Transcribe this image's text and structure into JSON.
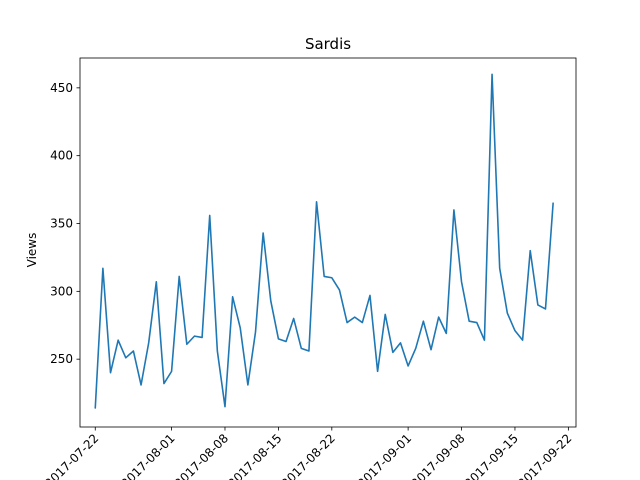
{
  "chart_data": {
    "type": "line",
    "title": "Sardis",
    "xlabel": "",
    "ylabel": "Views",
    "grid": false,
    "legend": "none",
    "xlim": [
      "2017-07-20",
      "2017-09-23"
    ],
    "ylim": [
      200,
      472
    ],
    "x_ticks": [
      "2017-07-22",
      "2017-08-01",
      "2017-08-08",
      "2017-08-15",
      "2017-08-22",
      "2017-09-01",
      "2017-09-08",
      "2017-09-15",
      "2017-09-22"
    ],
    "y_ticks": [
      250,
      300,
      350,
      400,
      450
    ],
    "series": [
      {
        "color": "#1f77b4",
        "x": [
          "2017-07-22",
          "2017-07-23",
          "2017-07-24",
          "2017-07-25",
          "2017-07-26",
          "2017-07-27",
          "2017-07-28",
          "2017-07-29",
          "2017-07-30",
          "2017-07-31",
          "2017-08-01",
          "2017-08-02",
          "2017-08-03",
          "2017-08-04",
          "2017-08-05",
          "2017-08-06",
          "2017-08-07",
          "2017-08-08",
          "2017-08-09",
          "2017-08-10",
          "2017-08-11",
          "2017-08-12",
          "2017-08-13",
          "2017-08-14",
          "2017-08-15",
          "2017-08-16",
          "2017-08-17",
          "2017-08-18",
          "2017-08-19",
          "2017-08-20",
          "2017-08-21",
          "2017-08-22",
          "2017-08-23",
          "2017-08-24",
          "2017-08-25",
          "2017-08-26",
          "2017-08-27",
          "2017-08-28",
          "2017-08-29",
          "2017-08-30",
          "2017-08-31",
          "2017-09-01",
          "2017-09-02",
          "2017-09-03",
          "2017-09-04",
          "2017-09-05",
          "2017-09-06",
          "2017-09-07",
          "2017-09-08",
          "2017-09-09",
          "2017-09-10",
          "2017-09-11",
          "2017-09-12",
          "2017-09-13",
          "2017-09-14",
          "2017-09-15",
          "2017-09-16",
          "2017-09-17",
          "2017-09-18",
          "2017-09-19",
          "2017-09-20"
        ],
        "values": [
          214,
          317,
          240,
          264,
          251,
          256,
          231,
          262,
          307,
          232,
          241,
          311,
          261,
          267,
          266,
          356,
          256,
          215,
          296,
          273,
          231,
          270,
          343,
          293,
          265,
          263,
          280,
          258,
          256,
          366,
          311,
          310,
          301,
          277,
          281,
          277,
          297,
          241,
          283,
          255,
          262,
          245,
          258,
          278,
          257,
          281,
          269,
          360,
          307,
          278,
          277,
          264,
          460,
          317,
          284,
          271,
          264,
          330,
          290,
          287,
          365
        ]
      }
    ]
  }
}
